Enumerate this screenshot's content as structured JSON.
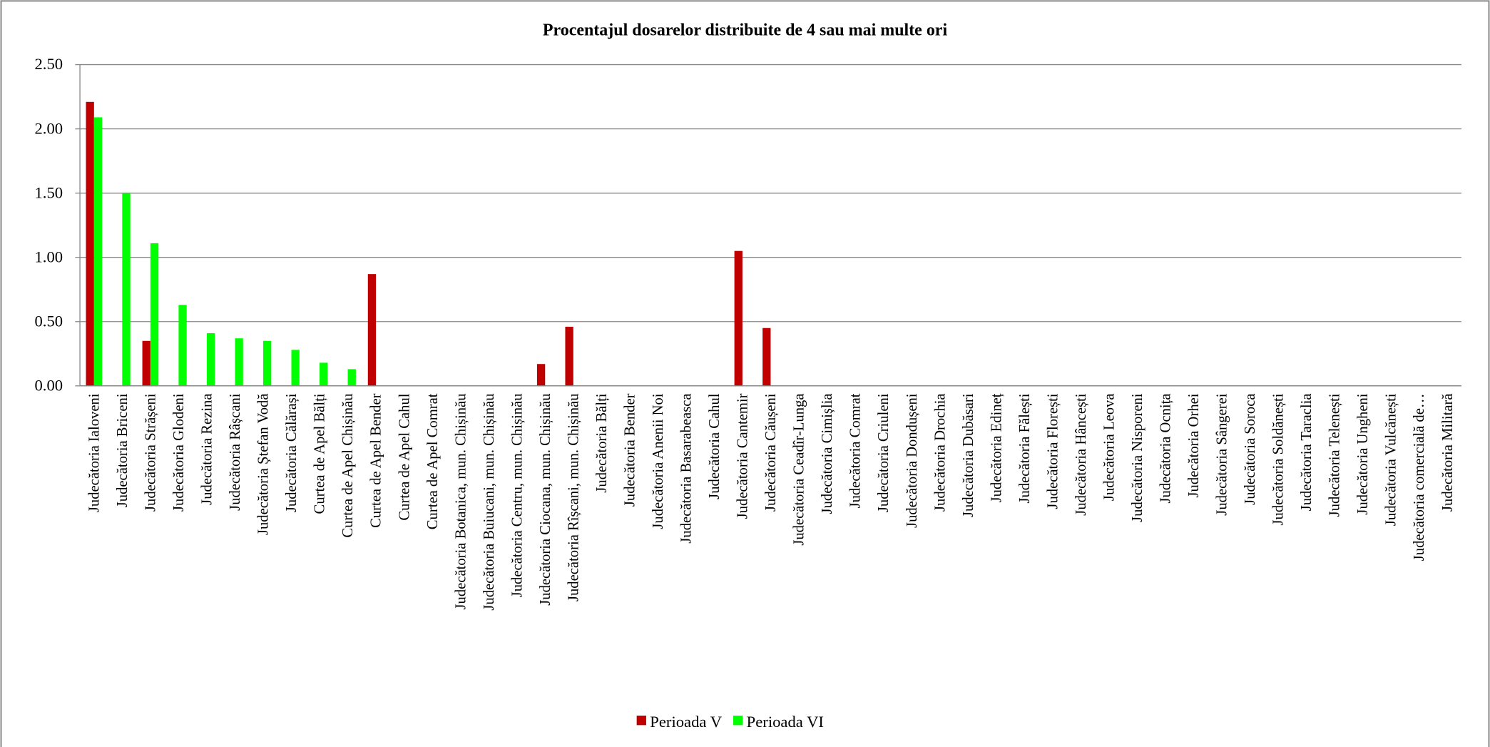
{
  "chart_data": {
    "type": "bar",
    "title": "Procentajul dosarelor distribuite de 4 sau mai multe ori",
    "categories": [
      "Judecătoria Ialoveni",
      "Judecătoria Briceni",
      "Judecătoria Strășeni",
      "Judecătoria Glodeni",
      "Judecătoria Rezina",
      "Judecătoria Râșcani",
      "Judecătoria Ștefan Vodă",
      "Judecătoria Călărași",
      "Curtea de Apel Bălți",
      "Curtea de Apel Chișinău",
      "Curtea de Apel Bender",
      "Curtea de Apel Cahul",
      "Curtea de Apel Comrat",
      "Judecătoria Botanica, mun. Chișinău",
      "Judecătoria Buiucani, mun. Chișinău",
      "Judecătoria Centru, mun. Chișinău",
      "Judecătoria Ciocana, mun. Chișinău",
      "Judecătoria Rîșcani, mun. Chișinău",
      "Judecătoria Bălți",
      "Judecătoria Bender",
      "Judecătoria Anenii Noi",
      "Judecătoria Basarabeasca",
      "Judecătoria Cahul",
      "Judecătoria Cantemir",
      "Judecătoria Căușeni",
      "Judecătoria Ceadîr-Lunga",
      "Judecătoria Cimișlia",
      "Judecătoria Comrat",
      "Judecătoria Criuleni",
      "Judecătoria Dondușeni",
      "Judecătoria Drochia",
      "Judecătoria Dubăsari",
      "Judecătoria Edineț",
      "Judecătoria Fălești",
      "Judecătoria Florești",
      "Judecătoria Hâncești",
      "Judecătoria Leova",
      "Judecătoria Nisporeni",
      "Judecătoria Ocnița",
      "Judecătoria Orhei",
      "Judecătoria Sângerei",
      "Judecătoria Soroca",
      "Judecătoria Soldănești",
      "Judecătoria Taraclia",
      "Judecătoria Telenești",
      "Judecătoria Ungheni",
      "Judecătoria Vulcănești",
      "Judecătoria comercială de…",
      "Judecătoria Militară"
    ],
    "series": [
      {
        "name": "Perioada V",
        "color": "#c00000",
        "values": [
          2.21,
          0,
          0.35,
          0,
          0,
          0,
          0,
          0,
          0,
          0,
          0.87,
          0,
          0,
          0,
          0,
          0,
          0.17,
          0.46,
          0,
          0,
          0,
          0,
          0,
          1.05,
          0.45,
          0,
          0,
          0,
          0,
          0,
          0,
          0,
          0,
          0,
          0,
          0,
          0,
          0,
          0,
          0,
          0,
          0,
          0,
          0,
          0,
          0,
          0,
          0,
          0
        ]
      },
      {
        "name": "Perioada VI",
        "color": "#00ff00",
        "values": [
          2.09,
          1.5,
          1.11,
          0.63,
          0.41,
          0.37,
          0.35,
          0.28,
          0.18,
          0.13,
          0,
          0,
          0,
          0,
          0,
          0,
          0,
          0,
          0,
          0,
          0,
          0,
          0,
          0,
          0,
          0,
          0,
          0,
          0,
          0,
          0,
          0,
          0,
          0,
          0,
          0,
          0,
          0,
          0,
          0,
          0,
          0,
          0,
          0,
          0,
          0,
          0,
          0,
          0
        ]
      }
    ],
    "ylim": [
      0,
      2.5
    ],
    "yticks": [
      {
        "value": 0,
        "label": "0.00"
      },
      {
        "value": 0.5,
        "label": "0.50"
      },
      {
        "value": 1,
        "label": "1.00"
      },
      {
        "value": 1.5,
        "label": "1.50"
      },
      {
        "value": 2,
        "label": "2.00"
      },
      {
        "value": 2.5,
        "label": "2.50"
      }
    ],
    "grid": true,
    "legend": "bottom"
  }
}
